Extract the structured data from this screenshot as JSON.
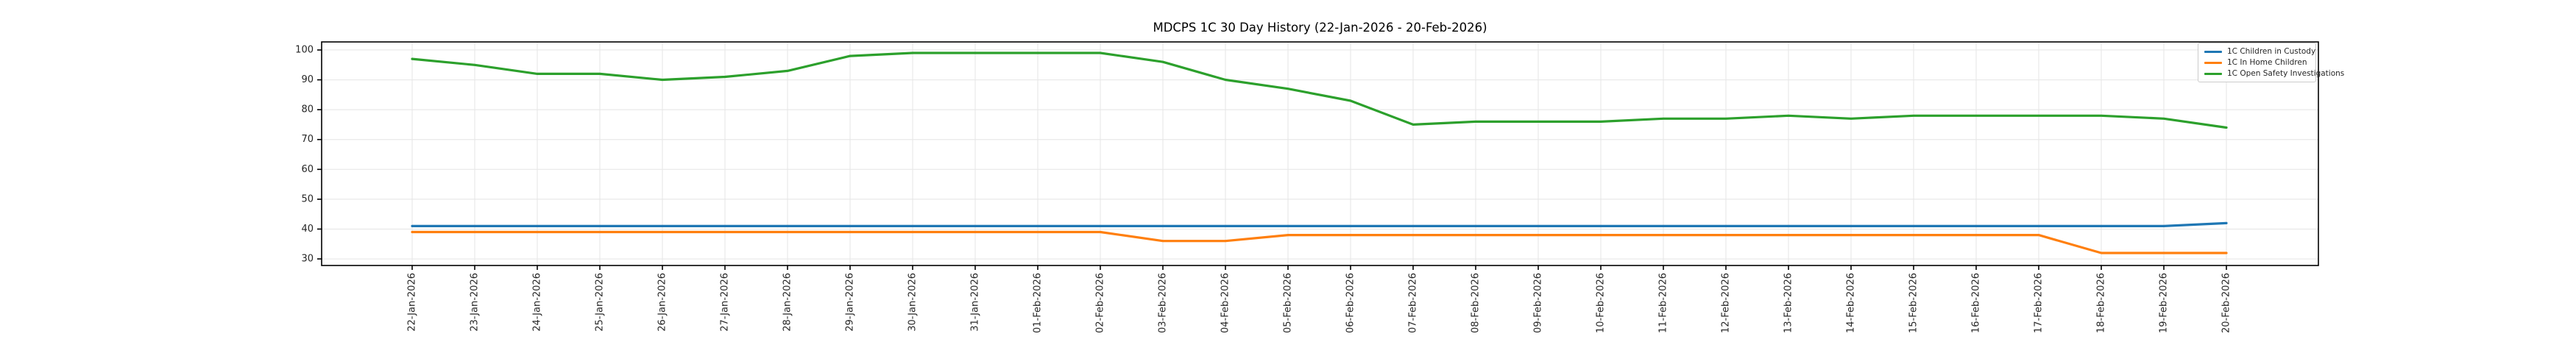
{
  "chart_data": {
    "type": "line",
    "title": "MDCPS 1C 30 Day History (22-Jan-2026 - 20-Feb-2026)",
    "xlabel": "",
    "ylabel": "",
    "x": [
      "22-Jan-2026",
      "23-Jan-2026",
      "24-Jan-2026",
      "25-Jan-2026",
      "26-Jan-2026",
      "27-Jan-2026",
      "28-Jan-2026",
      "29-Jan-2026",
      "30-Jan-2026",
      "31-Jan-2026",
      "01-Feb-2026",
      "02-Feb-2026",
      "03-Feb-2026",
      "04-Feb-2026",
      "05-Feb-2026",
      "06-Feb-2026",
      "07-Feb-2026",
      "08-Feb-2026",
      "09-Feb-2026",
      "10-Feb-2026",
      "11-Feb-2026",
      "12-Feb-2026",
      "13-Feb-2026",
      "14-Feb-2026",
      "15-Feb-2026",
      "16-Feb-2026",
      "17-Feb-2026",
      "18-Feb-2026",
      "19-Feb-2026",
      "20-Feb-2026"
    ],
    "series": [
      {
        "name": "1C Children in Custody",
        "color": "#1f77b4",
        "values": [
          41,
          41,
          41,
          41,
          41,
          41,
          41,
          41,
          41,
          41,
          41,
          41,
          41,
          41,
          41,
          41,
          41,
          41,
          41,
          41,
          41,
          41,
          41,
          41,
          41,
          41,
          41,
          41,
          41,
          42
        ]
      },
      {
        "name": "1C In Home Children",
        "color": "#ff7f0e",
        "values": [
          39,
          39,
          39,
          39,
          39,
          39,
          39,
          39,
          39,
          39,
          39,
          39,
          36,
          36,
          38,
          38,
          38,
          38,
          38,
          38,
          38,
          38,
          38,
          38,
          38,
          38,
          38,
          32,
          32,
          32
        ]
      },
      {
        "name": "1C Open Safety Investigations",
        "color": "#2ca02c",
        "values": [
          97,
          95,
          92,
          92,
          90,
          91,
          93,
          98,
          99,
          99,
          99,
          99,
          96,
          90,
          87,
          83,
          75,
          76,
          76,
          76,
          77,
          77,
          78,
          77,
          78,
          78,
          78,
          78,
          77,
          74
        ]
      }
    ],
    "yticks": [
      30,
      40,
      50,
      60,
      70,
      80,
      90,
      100
    ],
    "ylim": [
      27.8,
      102.7
    ],
    "grid": true,
    "legend_position": "upper right"
  }
}
